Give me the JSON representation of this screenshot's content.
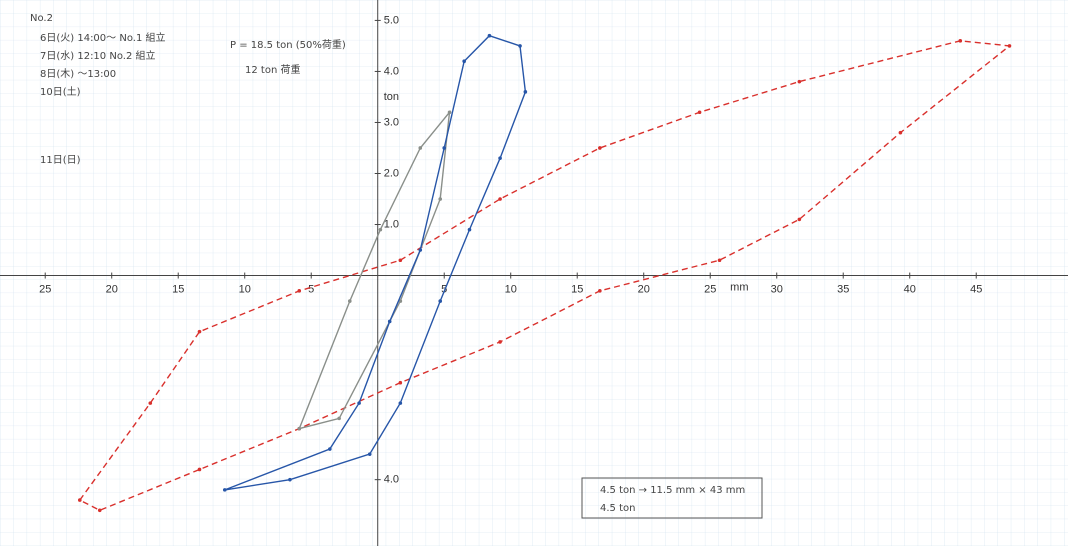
{
  "chart_data": {
    "type": "line",
    "x_label": "mm",
    "y_label": "ton",
    "xlim": [
      -28.4,
      51.9
    ],
    "ylim": [
      -5.3,
      5.4
    ],
    "xticks": [
      {
        "value": -25,
        "label": "25"
      },
      {
        "value": -20,
        "label": "20"
      },
      {
        "value": -15,
        "label": "15"
      },
      {
        "value": -10,
        "label": "10"
      },
      {
        "value": -5,
        "label": "5"
      },
      5,
      10,
      15,
      20,
      25,
      30,
      35,
      40,
      45
    ],
    "yticks": [
      {
        "value": 1,
        "label": "1.0"
      },
      {
        "value": 2,
        "label": "2.0"
      },
      {
        "value": 3,
        "label": "3.0"
      },
      {
        "value": 4,
        "label": "4.0"
      },
      {
        "value": 5,
        "label": "5.0"
      },
      {
        "value": -4,
        "label": "4.0"
      }
    ],
    "series": [
      {
        "color": "#d9302c",
        "dashed": true,
        "x": [
          -22.4,
          -17.1,
          -13.4,
          -5.9,
          1.7,
          9.2,
          16.7,
          24.2,
          31.7,
          43.8,
          47.5,
          39.3,
          31.7,
          25.7,
          16.7,
          9.2,
          1.7,
          -5.9,
          -13.4,
          -20.9
        ],
        "values": [
          -4.4,
          -2.5,
          -1.1,
          -0.3,
          0.3,
          1.5,
          2.5,
          3.2,
          3.8,
          4.6,
          4.5,
          2.8,
          1.1,
          0.3,
          -0.3,
          -1.3,
          -2.1,
          -3.0,
          -3.8,
          -4.6
        ]
      },
      {
        "color": "#8a8f8a",
        "dashed": false,
        "x": [
          -5.9,
          -2.1,
          0.2,
          3.2,
          5.4,
          4.7,
          1.7,
          -2.9
        ],
        "values": [
          -3.0,
          -0.5,
          0.9,
          2.5,
          3.2,
          1.5,
          -0.5,
          -2.8
        ]
      },
      {
        "color": "#2756a8",
        "dashed": false,
        "x": [
          -11.5,
          -3.6,
          -1.4,
          0.9,
          3.2,
          5.0,
          6.5,
          8.4,
          10.7,
          11.1,
          9.2,
          6.9,
          4.7,
          1.7,
          -0.6,
          -6.6
        ],
        "values": [
          -4.2,
          -3.4,
          -2.5,
          -0.9,
          0.5,
          2.5,
          4.2,
          4.7,
          4.5,
          3.6,
          2.3,
          0.9,
          -0.5,
          -2.5,
          -3.5,
          -4.0
        ]
      }
    ],
    "annotations": [
      "No.2",
      "P = 18.5 ton (50%荷重)",
      "6日(火) 14:00〜 No.1 組立",
      "7日(水) 12:10 No.2 組立",
      "8日(木) 〜13:00",
      "10日(土)",
      "11日(日)",
      "12 ton 荷重",
      "4.5 ton → 11.5 mm × 43 mm",
      "4.5 ton"
    ]
  }
}
